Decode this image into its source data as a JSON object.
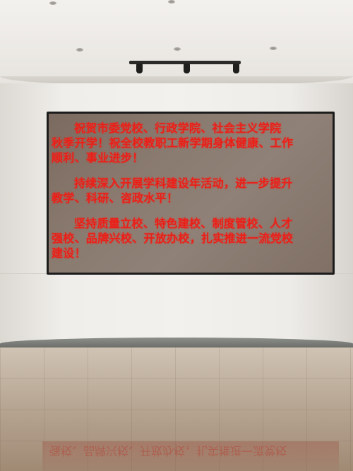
{
  "led_display": {
    "paragraphs": [
      "祝贺市委党校、行政学院、社会主义学院\n秋季开学！祝全校教职工新学期身体健康、工作\n顺利、事业进步！",
      "持续深入开展学科建设年活动，进一步提升\n教学、科研、咨政水平！",
      "坚持质量立校、特色建校、制度管校、人才\n强校、品牌兴校、开放办校，扎实推进一流党校\n建设！"
    ],
    "text_color": "#e9201a"
  },
  "floor_reflection": {
    "text": "强校、品牌兴校、开放办校，扎实推进一流党校"
  }
}
